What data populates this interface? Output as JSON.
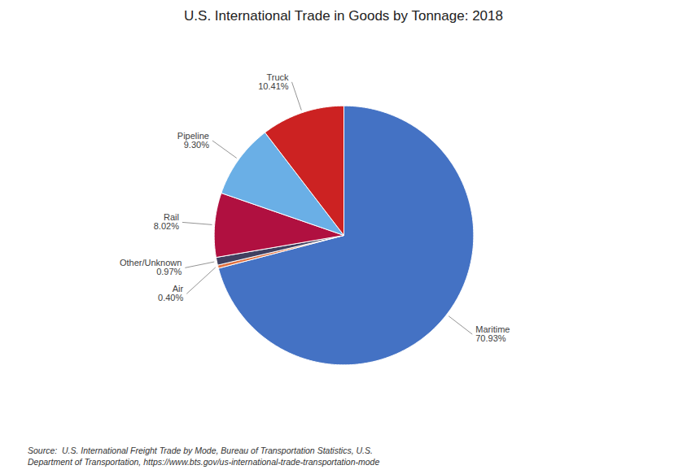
{
  "chart_data": {
    "type": "pie",
    "title": "U.S. International Trade in Goods by Tonnage: 2018",
    "caption": "Source:  U.S. International Freight Trade by Mode, Bureau of Transportation Statistics, U.S.\nDepartment of Transportation, https://www.bts.gov/us-international-trade-transportation-mode",
    "categories": [
      "Maritime",
      "Air",
      "Other/Unknown",
      "Rail",
      "Pipeline",
      "Truck"
    ],
    "values": [
      70.93,
      0.4,
      0.97,
      8.02,
      9.3,
      10.41
    ],
    "value_labels": [
      "70.93%",
      "0.40%",
      "0.97%",
      "8.02%",
      "9.30%",
      "10.41%"
    ],
    "colors": [
      "#4472C4",
      "#E07040",
      "#404060",
      "#B01040",
      "#6AAFE6",
      "#CC2222"
    ],
    "data_labels": true
  }
}
